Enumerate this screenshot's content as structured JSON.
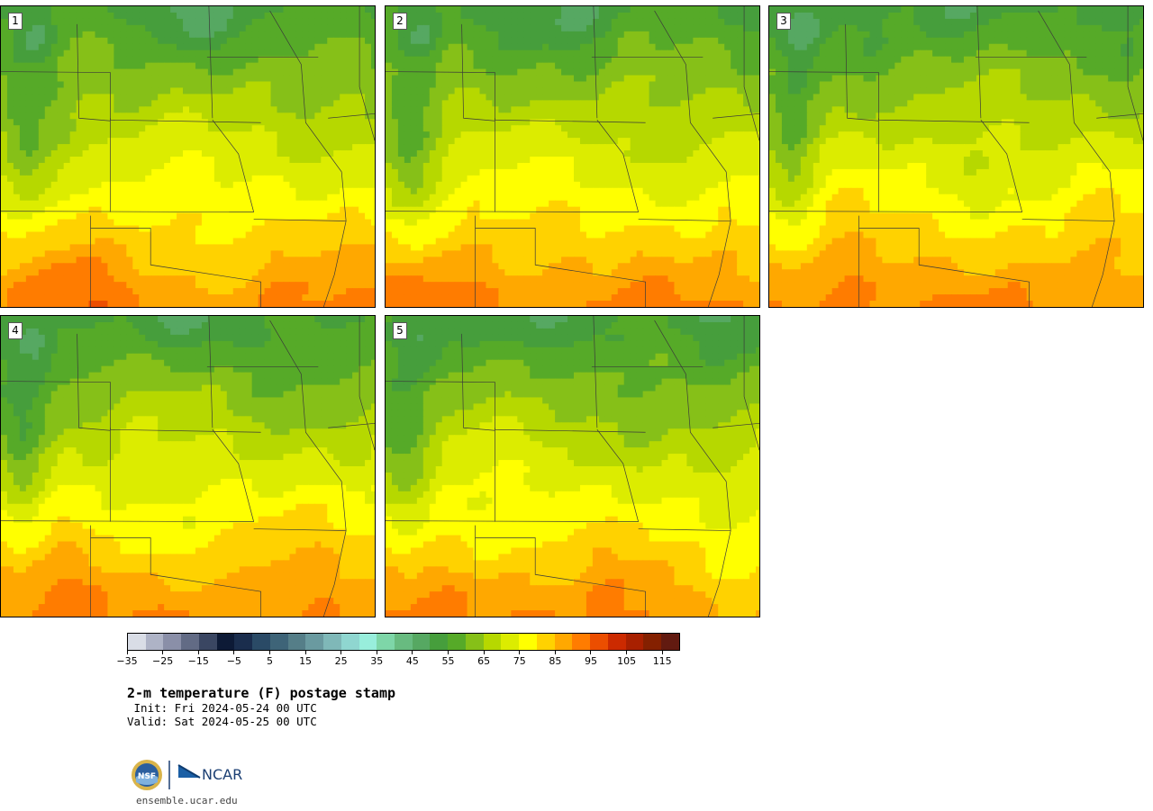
{
  "panels": [
    {
      "label": "1",
      "variant": 0
    },
    {
      "label": "2",
      "variant": 1
    },
    {
      "label": "3",
      "variant": 2
    },
    {
      "label": "4",
      "variant": 3
    },
    {
      "label": "5",
      "variant": 4
    }
  ],
  "colorbar": {
    "colors": [
      "#d9dde6",
      "#aeb3c6",
      "#8a8fa8",
      "#626b85",
      "#3a4662",
      "#0d1a36",
      "#1a2d4d",
      "#2a4a66",
      "#3e6478",
      "#557e88",
      "#6a9aa0",
      "#7fb8b8",
      "#8fd6d0",
      "#98eedc",
      "#7ed6a8",
      "#68bb80",
      "#56a862",
      "#469e3c",
      "#56aa28",
      "#86c018",
      "#b6d800",
      "#dcec00",
      "#ffff00",
      "#ffd200",
      "#ffa800",
      "#ff7c00",
      "#ec4e00",
      "#cc2a00",
      "#a82000",
      "#842000",
      "#621a10"
    ],
    "tick_labels": [
      "−35",
      "−25",
      "−15",
      "−5",
      "5",
      "15",
      "25",
      "35",
      "45",
      "55",
      "65",
      "75",
      "85",
      "95",
      "105",
      "115"
    ],
    "min": -35,
    "max": 120
  },
  "title": "2-m temperature (F) postage stamp",
  "init": " Init: Fri 2024-05-24 00 UTC",
  "valid": "Valid: Sat 2024-05-25 00 UTC",
  "logos": {
    "nsf": "NSF",
    "ncar": "NCAR"
  },
  "site": "ensemble.ucar.edu"
}
